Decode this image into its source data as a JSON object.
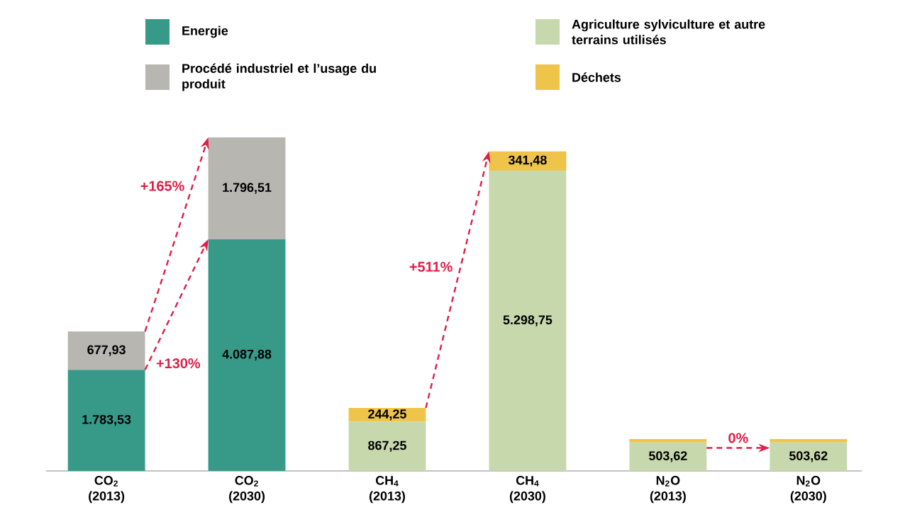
{
  "chart_data": {
    "type": "bar",
    "stacked": true,
    "categories": [
      "CO$_{2}$ (2013)",
      "CO$_{2}$ (2030)",
      "CH$_{4}$ (2013)",
      "CH$_{4}$ (2030)",
      "N$_{2}$O (2013)",
      "N$_{2}$O (2030)"
    ],
    "series": [
      {
        "name": "Energie",
        "color": "#379a89",
        "values": [
          1783.53,
          4087.88,
          null,
          null,
          null,
          null
        ],
        "value_labels": [
          "1.783,53",
          "4.087,88",
          null,
          null,
          null,
          null
        ]
      },
      {
        "name": "Procédé industriel et l’usage du produit",
        "color": "#b7b6b0",
        "values": [
          677.93,
          1796.51,
          null,
          null,
          null,
          null
        ],
        "value_labels": [
          "677,93",
          "1.796,51",
          null,
          null,
          null,
          null
        ]
      },
      {
        "name": "Agriculture sylviculture et autre terrains utilisés",
        "color": "#c7d8ad",
        "values": [
          null,
          null,
          867.25,
          5298.75,
          503.62,
          503.62
        ],
        "value_labels": [
          null,
          null,
          "867,25",
          "5.298,75",
          "503,62",
          "503,62"
        ]
      },
      {
        "name": "Déchets",
        "color": "#eec44a",
        "values": [
          null,
          null,
          244.25,
          341.48,
          60,
          60
        ],
        "value_labels": [
          null,
          null,
          "244,25",
          "341,48",
          null,
          null
        ]
      }
    ],
    "legend": "top",
    "annotations": [
      "+165%",
      "+130%",
      "+511%",
      "0%"
    ]
  }
}
